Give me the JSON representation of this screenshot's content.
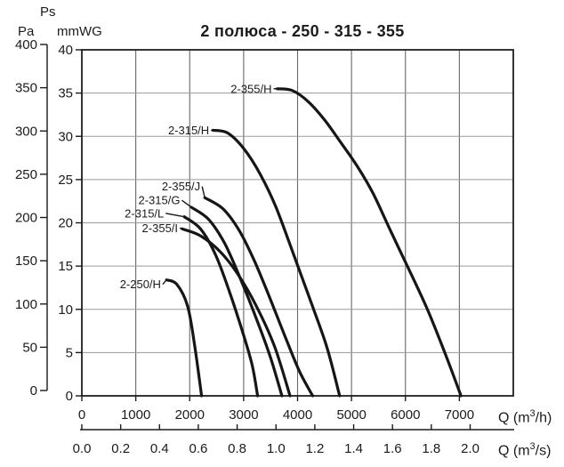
{
  "chart_data": {
    "type": "line",
    "title": "2 полюса - 250 - 315 - 355",
    "y_axis": {
      "ps_header": "Ps",
      "pa_label": "Pa",
      "pa_ticks": [
        0,
        50,
        100,
        150,
        200,
        250,
        300,
        350,
        400
      ],
      "mmwg_label": "mmWG",
      "mmwg_ticks": [
        0,
        5,
        10,
        15,
        20,
        25,
        30,
        35,
        40
      ],
      "mmwg_range": [
        0,
        40
      ]
    },
    "x_axis_h": {
      "ticks": [
        0,
        1000,
        2000,
        3000,
        4000,
        5000,
        6000,
        7000
      ],
      "range": [
        0,
        8000
      ],
      "unit_prefix": "Q (m",
      "unit_sup": "3",
      "unit_suffix": "/h)"
    },
    "x_axis_s": {
      "ticks": [
        "0.0",
        "0.2",
        "0.4",
        "0.6",
        "0.8",
        "1.0",
        "1.2",
        "1.4",
        "1.6",
        "1.8",
        "2.0"
      ],
      "unit_prefix": "Q (m",
      "unit_sup": "3",
      "unit_suffix": "/s)",
      "h_per_unit": 3600
    },
    "grid": true,
    "legend_position": "inline-labels",
    "series": [
      {
        "name": "2-250/H",
        "label_anchor": [
          1500,
          12.9
        ],
        "points": [
          [
            1570,
            13.4
          ],
          [
            1760,
            12.9
          ],
          [
            1960,
            10.4
          ],
          [
            2090,
            5.9
          ],
          [
            2220,
            0
          ]
        ]
      },
      {
        "name": "2-355/I",
        "label_anchor": [
          1815,
          19.4
        ],
        "points": [
          [
            1860,
            19.3
          ],
          [
            2200,
            18.5
          ],
          [
            2560,
            16.7
          ],
          [
            2900,
            14.0
          ],
          [
            3250,
            10.2
          ],
          [
            3580,
            5.6
          ],
          [
            3860,
            0
          ]
        ]
      },
      {
        "name": "2-315/L",
        "label_anchor": [
          1555,
          21.1
        ],
        "points": [
          [
            1900,
            20.7
          ],
          [
            2200,
            19.3
          ],
          [
            2480,
            16.3
          ],
          [
            2750,
            11.8
          ],
          [
            3000,
            7.0
          ],
          [
            3160,
            3.5
          ],
          [
            3260,
            0
          ]
        ]
      },
      {
        "name": "2-315/G",
        "label_anchor": [
          1855,
          22.6
        ],
        "points": [
          [
            2030,
            21.8
          ],
          [
            2350,
            20.4
          ],
          [
            2650,
            17.6
          ],
          [
            2950,
            13.4
          ],
          [
            3250,
            8.7
          ],
          [
            3500,
            4.4
          ],
          [
            3710,
            0
          ]
        ]
      },
      {
        "name": "2-355/J",
        "label_anchor": [
          2230,
          24.2
        ],
        "points": [
          [
            2280,
            22.9
          ],
          [
            2620,
            21.6
          ],
          [
            2920,
            19.1
          ],
          [
            3200,
            15.6
          ],
          [
            3480,
            11.4
          ],
          [
            3760,
            7.0
          ],
          [
            4030,
            2.9
          ],
          [
            4280,
            0
          ]
        ]
      },
      {
        "name": "2-315/H",
        "label_anchor": [
          2395,
          30.7
        ],
        "points": [
          [
            2430,
            30.7
          ],
          [
            2700,
            30.4
          ],
          [
            3000,
            28.6
          ],
          [
            3300,
            25.7
          ],
          [
            3600,
            21.8
          ],
          [
            3970,
            15.6
          ],
          [
            4280,
            10.3
          ],
          [
            4550,
            5.5
          ],
          [
            4780,
            0
          ]
        ]
      },
      {
        "name": "2-355/H",
        "label_anchor": [
          3555,
          35.5
        ],
        "points": [
          [
            3620,
            35.5
          ],
          [
            3900,
            35.3
          ],
          [
            4200,
            34.0
          ],
          [
            4500,
            31.9
          ],
          [
            4800,
            29.3
          ],
          [
            5100,
            26.6
          ],
          [
            5400,
            23.4
          ],
          [
            5730,
            19.0
          ],
          [
            6050,
            14.8
          ],
          [
            6400,
            10.1
          ],
          [
            6730,
            5.0
          ],
          [
            7030,
            0
          ]
        ]
      }
    ],
    "colors": {
      "curve": "#161616",
      "grid_horizontal": "#9a9a9a",
      "grid_vertical": "#686868",
      "border": "#1f1f1f",
      "axis": "#1b1b1b",
      "text": "#1b1b1b",
      "background": "#ffffff"
    }
  }
}
